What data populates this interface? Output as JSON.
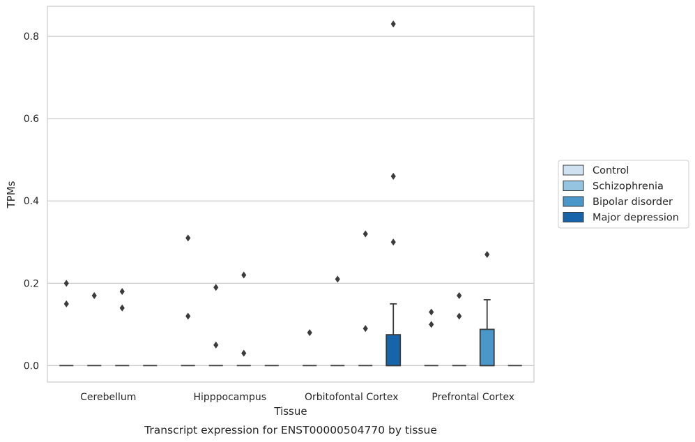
{
  "caption": "Transcript expression for ENST00000504770 by tissue",
  "chart_data": {
    "type": "box",
    "title": "",
    "xlabel": "Tissue",
    "ylabel": "TPMs",
    "ylim": [
      -0.04,
      0.873
    ],
    "yticks": [
      "0.0",
      "0.2",
      "0.4",
      "0.6",
      "0.8"
    ],
    "categories": [
      "Cerebellum",
      "Hipppocampus",
      "Orbitofontal Cortex",
      "Prefrontal Cortex"
    ],
    "grid": "horizontal",
    "legend_position": "right",
    "series": [
      {
        "name": "Control",
        "color": "#d0e1f2"
      },
      {
        "name": "Schizophrenia",
        "color": "#94c4df"
      },
      {
        "name": "Bipolar disorder",
        "color": "#4a98c9"
      },
      {
        "name": "Major depression",
        "color": "#1764ab"
      }
    ],
    "boxes": [
      {
        "category": "Cerebellum",
        "series": "Control",
        "q1": 0,
        "median": 0,
        "q3": 0,
        "whisker_low": 0,
        "whisker_high": 0,
        "outliers": [
          0.2,
          0.15
        ]
      },
      {
        "category": "Cerebellum",
        "series": "Schizophrenia",
        "q1": 0,
        "median": 0,
        "q3": 0,
        "whisker_low": 0,
        "whisker_high": 0,
        "outliers": [
          0.17
        ]
      },
      {
        "category": "Cerebellum",
        "series": "Bipolar disorder",
        "q1": 0,
        "median": 0,
        "q3": 0,
        "whisker_low": 0,
        "whisker_high": 0,
        "outliers": [
          0.18,
          0.14
        ]
      },
      {
        "category": "Cerebellum",
        "series": "Major depression",
        "q1": 0,
        "median": 0,
        "q3": 0,
        "whisker_low": 0,
        "whisker_high": 0,
        "outliers": []
      },
      {
        "category": "Hipppocampus",
        "series": "Control",
        "q1": 0,
        "median": 0,
        "q3": 0,
        "whisker_low": 0,
        "whisker_high": 0,
        "outliers": [
          0.31,
          0.12
        ]
      },
      {
        "category": "Hipppocampus",
        "series": "Schizophrenia",
        "q1": 0,
        "median": 0,
        "q3": 0,
        "whisker_low": 0,
        "whisker_high": 0,
        "outliers": [
          0.19,
          0.05
        ]
      },
      {
        "category": "Hipppocampus",
        "series": "Bipolar disorder",
        "q1": 0,
        "median": 0,
        "q3": 0,
        "whisker_low": 0,
        "whisker_high": 0,
        "outliers": [
          0.22,
          0.03
        ]
      },
      {
        "category": "Hipppocampus",
        "series": "Major depression",
        "q1": 0,
        "median": 0,
        "q3": 0,
        "whisker_low": 0,
        "whisker_high": 0,
        "outliers": []
      },
      {
        "category": "Orbitofontal Cortex",
        "series": "Control",
        "q1": 0,
        "median": 0,
        "q3": 0,
        "whisker_low": 0,
        "whisker_high": 0,
        "outliers": [
          0.08
        ]
      },
      {
        "category": "Orbitofontal Cortex",
        "series": "Schizophrenia",
        "q1": 0,
        "median": 0,
        "q3": 0,
        "whisker_low": 0,
        "whisker_high": 0,
        "outliers": [
          0.21
        ]
      },
      {
        "category": "Orbitofontal Cortex",
        "series": "Bipolar disorder",
        "q1": 0,
        "median": 0,
        "q3": 0,
        "whisker_low": 0,
        "whisker_high": 0,
        "outliers": [
          0.32,
          0.09
        ]
      },
      {
        "category": "Orbitofontal Cortex",
        "series": "Major depression",
        "q1": 0,
        "median": 0,
        "q3": 0.075,
        "whisker_low": 0,
        "whisker_high": 0.15,
        "outliers": [
          0.83,
          0.46,
          0.3
        ]
      },
      {
        "category": "Prefrontal Cortex",
        "series": "Control",
        "q1": 0,
        "median": 0,
        "q3": 0,
        "whisker_low": 0,
        "whisker_high": 0,
        "outliers": [
          0.13,
          0.1
        ]
      },
      {
        "category": "Prefrontal Cortex",
        "series": "Schizophrenia",
        "q1": 0,
        "median": 0,
        "q3": 0,
        "whisker_low": 0,
        "whisker_high": 0,
        "outliers": [
          0.17,
          0.12
        ]
      },
      {
        "category": "Prefrontal Cortex",
        "series": "Bipolar disorder",
        "q1": 0,
        "median": 0,
        "q3": 0.088,
        "whisker_low": 0,
        "whisker_high": 0.16,
        "outliers": [
          0.27
        ]
      },
      {
        "category": "Prefrontal Cortex",
        "series": "Major depression",
        "q1": 0,
        "median": 0,
        "q3": 0,
        "whisker_low": 0,
        "whisker_high": 0,
        "outliers": []
      }
    ]
  }
}
